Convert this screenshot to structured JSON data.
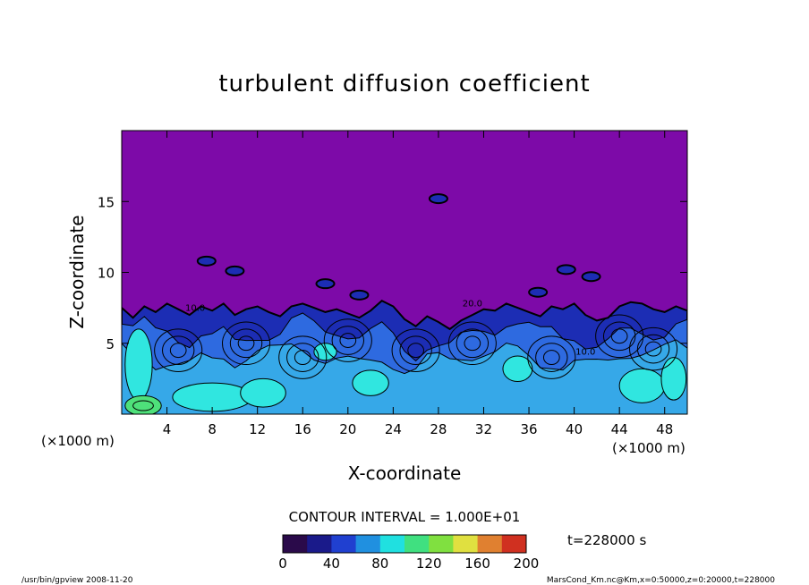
{
  "chart_data": {
    "type": "heatmap",
    "title": "turbulent diffusion coefficient",
    "xlabel": "X-coordinate",
    "ylabel": "Z-coordinate",
    "x_unit": "(×1000 m)",
    "z_unit": "(×1000 m)",
    "xlim": [
      0,
      50
    ],
    "ylim": [
      0,
      20
    ],
    "x_ticks": [
      4,
      8,
      12,
      16,
      20,
      24,
      28,
      32,
      36,
      40,
      44,
      48
    ],
    "y_ticks": [
      5,
      10,
      15
    ],
    "contour_interval_text": "CONTOUR INTERVAL = 1.000E+01",
    "time_text": "t=228000 s",
    "colorbar": {
      "min": 0,
      "max": 200,
      "ticks": [
        0,
        40,
        80,
        120,
        160,
        200
      ],
      "colors": [
        "#2a0a4a",
        "#1a1a8a",
        "#2040d0",
        "#2090e0",
        "#20e0e0",
        "#40e080",
        "#80e040",
        "#e0e040",
        "#e08030",
        "#d03020"
      ]
    },
    "field_colors": {
      "background_low_value": "#7d0aa8",
      "level_dark_blue": "#1c2db4",
      "level_blue": "#2e6ae0",
      "level_light_blue": "#36a8e8",
      "level_cyan": "#30e6e0",
      "level_green": "#4ee07a",
      "contour_line": "#000000"
    },
    "turbulent_layer_top_profile": {
      "x": [
        0,
        1,
        2,
        3,
        4,
        5,
        6,
        7,
        8,
        9,
        10,
        11,
        12,
        13,
        14,
        15,
        16,
        17,
        18,
        19,
        20,
        21,
        22,
        23,
        24,
        25,
        26,
        27,
        28,
        29,
        30,
        31,
        32,
        33,
        34,
        35,
        36,
        37,
        38,
        39,
        40,
        41,
        42,
        43,
        44,
        45,
        46,
        47,
        48,
        49,
        50
      ],
      "z": [
        7.5,
        6.8,
        7.6,
        7.2,
        7.8,
        7.4,
        7.0,
        7.6,
        7.3,
        7.8,
        7.0,
        7.4,
        7.6,
        7.2,
        6.9,
        7.6,
        7.8,
        7.5,
        7.2,
        7.4,
        7.1,
        6.8,
        7.3,
        8.0,
        7.6,
        6.7,
        6.2,
        6.9,
        6.5,
        6.0,
        6.6,
        7.0,
        7.4,
        7.3,
        7.8,
        7.5,
        7.2,
        6.9,
        7.6,
        7.4,
        7.8,
        7.0,
        6.6,
        6.8,
        7.6,
        7.9,
        7.8,
        7.4,
        7.2,
        7.6,
        7.3
      ]
    },
    "elevated_patches": [
      {
        "x": 7.5,
        "z": 10.8,
        "value": 10
      },
      {
        "x": 10,
        "z": 10.1,
        "value": 10
      },
      {
        "x": 18,
        "z": 9.2,
        "value": 10
      },
      {
        "x": 21,
        "z": 8.4,
        "value": 10
      },
      {
        "x": 28,
        "z": 15.2,
        "value": 10
      },
      {
        "x": 36.8,
        "z": 8.6,
        "value": 10
      },
      {
        "x": 39.3,
        "z": 10.2,
        "value": 10
      },
      {
        "x": 41.5,
        "z": 9.7,
        "value": 10
      }
    ],
    "contour_labels": [
      {
        "x": 6.5,
        "z": 7.3,
        "text": "10.0"
      },
      {
        "x": 31,
        "z": 7.6,
        "text": "20.0"
      },
      {
        "x": 41,
        "z": 4.2,
        "text": "10.0"
      }
    ]
  },
  "footer_left": "/usr/bin/gpview   2008-11-20",
  "footer_right": "MarsCond_Km.nc@Km,x=0:50000,z=0:20000,t=228000"
}
